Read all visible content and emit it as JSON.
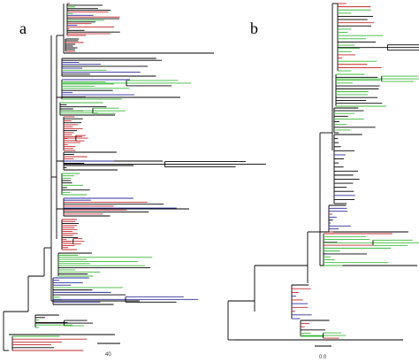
{
  "figure": {
    "panels": [
      {
        "id": "a",
        "label": "a",
        "scale_bar_label": "40"
      },
      {
        "id": "b",
        "label": "b",
        "scale_bar_label": "0.0"
      }
    ],
    "branch_colors": {
      "default": "#000000",
      "red": "#c0282d",
      "green": "#3cb83c",
      "blue": "#2c2c9c"
    }
  }
}
